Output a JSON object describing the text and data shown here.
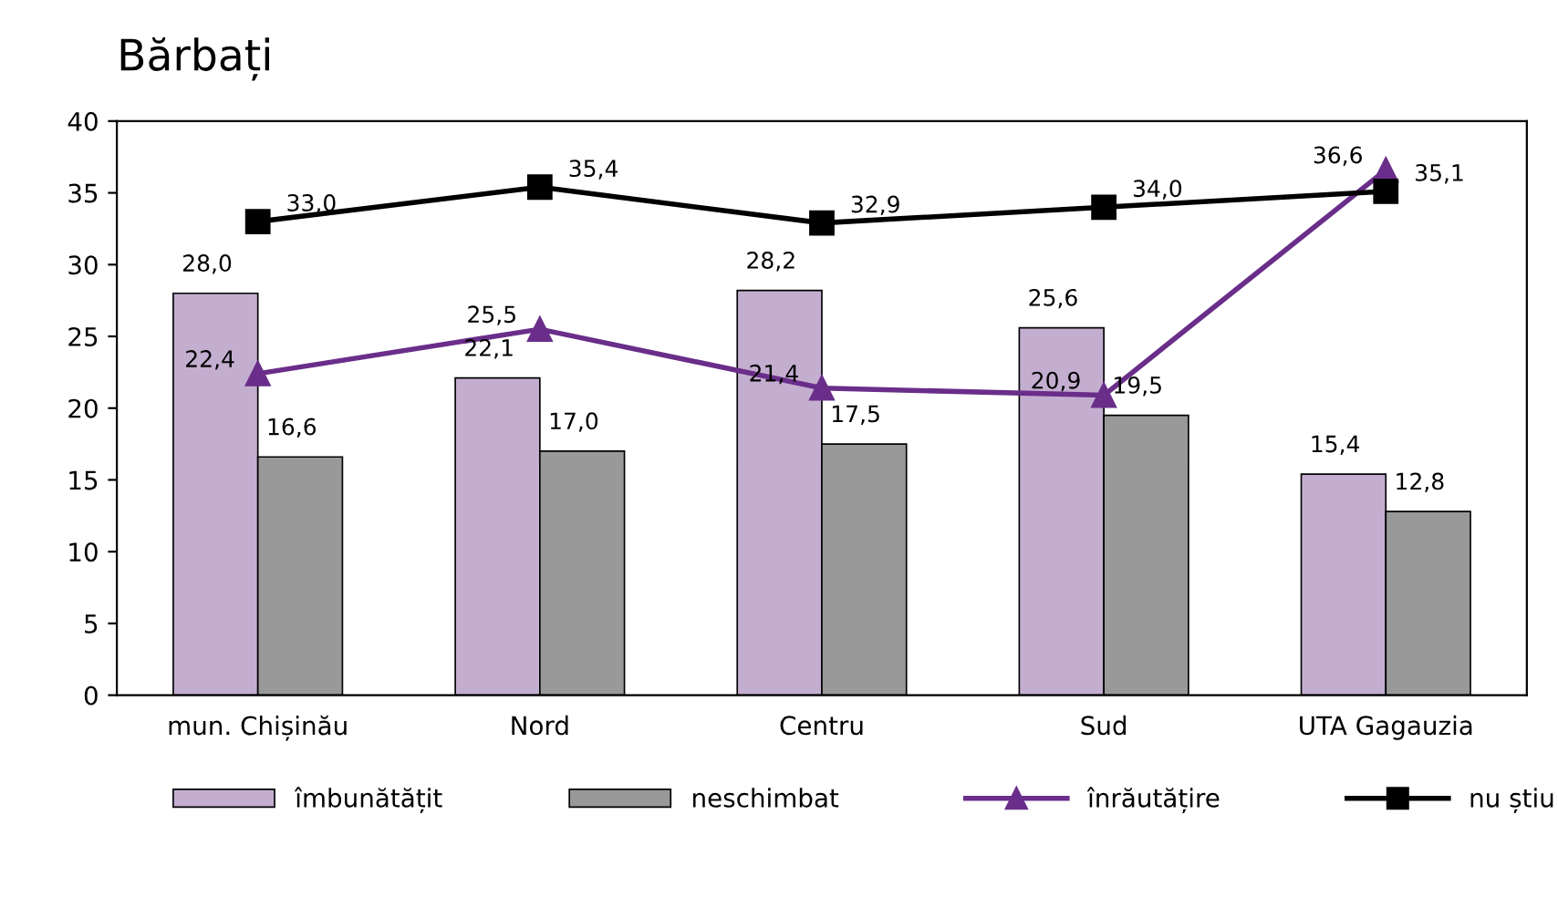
{
  "chart_data": {
    "type": "bar",
    "title": "Bărbați",
    "categories": [
      "mun. Chișinău",
      "Nord",
      "Centru",
      "Sud",
      "UTA Gagauzia"
    ],
    "series": [
      {
        "name": "îmbunătățit",
        "color": "#c4aed0",
        "values": [
          28.0,
          22.1,
          28.2,
          25.6,
          15.4
        ],
        "value_labels": [
          "28,0",
          "22,1",
          "28,2",
          "25,6",
          "15,4"
        ]
      },
      {
        "name": "neschimbat",
        "color": "#999999",
        "values": [
          16.6,
          17.0,
          17.5,
          19.5,
          12.8
        ],
        "value_labels": [
          "16,6",
          "17,0",
          "17,5",
          "19,5",
          "12,8"
        ]
      },
      {
        "name": "înrăutățire",
        "type": "line",
        "color": "#6a2e8a",
        "marker": "triangle",
        "values": [
          22.4,
          25.5,
          21.4,
          20.9,
          36.6
        ],
        "value_labels": [
          "22,4",
          "25,5",
          "21,4",
          "20,9",
          "36,6"
        ]
      },
      {
        "name": "nu știu",
        "type": "line",
        "color": "#000000",
        "marker": "square",
        "values": [
          33.0,
          35.4,
          32.9,
          34.0,
          35.1
        ],
        "value_labels": [
          "33,0",
          "35,4",
          "32,9",
          "34,0",
          "35,1"
        ]
      }
    ],
    "ylim": [
      0,
      40
    ],
    "yticks": [
      0,
      5,
      10,
      15,
      20,
      25,
      30,
      35,
      40
    ],
    "grid": false,
    "legend": "bottom"
  }
}
